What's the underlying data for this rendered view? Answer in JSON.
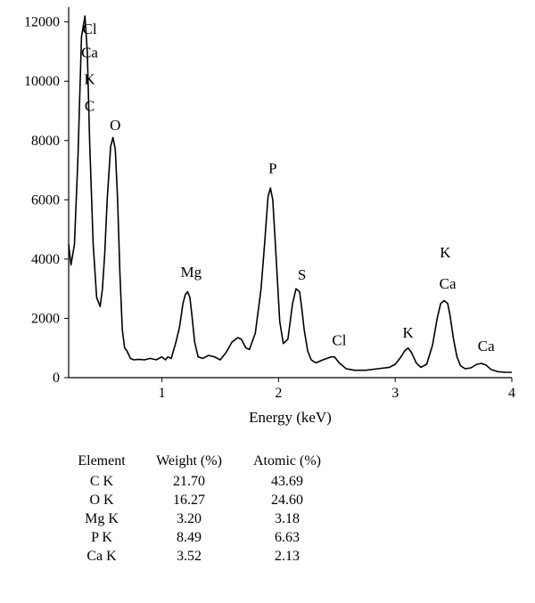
{
  "chart_data": {
    "type": "line",
    "title": "",
    "xlabel": "Energy (keV)",
    "ylabel": "",
    "xlim": [
      0.2,
      4.0
    ],
    "ylim": [
      0,
      12500
    ],
    "x_ticks": [
      1,
      2,
      3,
      4
    ],
    "y_ticks": [
      0,
      2000,
      4000,
      6000,
      8000,
      10000,
      12000
    ],
    "grid": false,
    "series": [
      {
        "x": [
          0.2,
          0.22,
          0.25,
          0.28,
          0.31,
          0.34,
          0.36,
          0.38,
          0.41,
          0.44,
          0.47,
          0.49,
          0.51,
          0.53,
          0.56,
          0.58,
          0.6,
          0.62,
          0.64,
          0.66,
          0.68,
          0.7,
          0.73,
          0.76,
          0.8,
          0.85,
          0.9,
          0.95,
          1.0,
          1.03,
          1.05,
          1.08,
          1.12,
          1.15,
          1.18,
          1.2,
          1.22,
          1.24,
          1.26,
          1.28,
          1.31,
          1.35,
          1.4,
          1.45,
          1.5,
          1.55,
          1.6,
          1.65,
          1.68,
          1.72,
          1.75,
          1.8,
          1.85,
          1.88,
          1.91,
          1.93,
          1.95,
          1.98,
          2.01,
          2.04,
          2.08,
          2.12,
          2.15,
          2.18,
          2.2,
          2.22,
          2.25,
          2.28,
          2.32,
          2.38,
          2.45,
          2.48,
          2.52,
          2.58,
          2.65,
          2.75,
          2.85,
          2.95,
          3.0,
          3.05,
          3.08,
          3.11,
          3.14,
          3.18,
          3.22,
          3.27,
          3.32,
          3.36,
          3.39,
          3.42,
          3.45,
          3.47,
          3.5,
          3.53,
          3.56,
          3.6,
          3.65,
          3.7,
          3.74,
          3.78,
          3.82,
          3.88,
          3.95,
          4.0
        ],
        "y": [
          4500,
          3800,
          4500,
          7500,
          11500,
          12200,
          11000,
          8000,
          4500,
          2700,
          2400,
          3000,
          4200,
          6000,
          7800,
          8100,
          7700,
          6000,
          3500,
          1600,
          1000,
          900,
          650,
          600,
          620,
          600,
          650,
          600,
          700,
          600,
          700,
          650,
          1200,
          1700,
          2500,
          2800,
          2900,
          2700,
          2000,
          1200,
          700,
          650,
          750,
          700,
          600,
          850,
          1200,
          1350,
          1300,
          1000,
          950,
          1500,
          3000,
          4500,
          6100,
          6400,
          6000,
          4000,
          1900,
          1150,
          1300,
          2500,
          3000,
          2900,
          2300,
          1600,
          900,
          600,
          500,
          600,
          700,
          700,
          500,
          300,
          250,
          250,
          300,
          350,
          450,
          700,
          900,
          1000,
          850,
          500,
          350,
          450,
          1100,
          2000,
          2500,
          2600,
          2500,
          2100,
          1300,
          700,
          400,
          300,
          330,
          450,
          480,
          420,
          280,
          200,
          180,
          180
        ]
      }
    ],
    "annotations": [
      {
        "text": "Cl",
        "x": 0.38,
        "y": 11600
      },
      {
        "text": "Ca",
        "x": 0.38,
        "y": 10800
      },
      {
        "text": "K",
        "x": 0.38,
        "y": 9900
      },
      {
        "text": "C",
        "x": 0.38,
        "y": 9000
      },
      {
        "text": "O",
        "x": 0.6,
        "y": 8350
      },
      {
        "text": "Mg",
        "x": 1.25,
        "y": 3400
      },
      {
        "text": "P",
        "x": 1.95,
        "y": 6900
      },
      {
        "text": "S",
        "x": 2.2,
        "y": 3300
      },
      {
        "text": "Cl",
        "x": 2.52,
        "y": 1100
      },
      {
        "text": "K",
        "x": 3.11,
        "y": 1350
      },
      {
        "text": "K",
        "x": 3.43,
        "y": 4050
      },
      {
        "text": "Ca",
        "x": 3.45,
        "y": 3000
      },
      {
        "text": "Ca",
        "x": 3.78,
        "y": 900
      }
    ]
  },
  "table": {
    "headers": [
      "Element",
      "Weight (%)",
      "Atomic (%)"
    ],
    "rows": [
      [
        "C K",
        "21.70",
        "43.69"
      ],
      [
        "O K",
        "16.27",
        "24.60"
      ],
      [
        "Mg K",
        "3.20",
        "3.18"
      ],
      [
        "P K",
        "8.49",
        "6.63"
      ],
      [
        "Ca K",
        "3.52",
        "2.13"
      ]
    ]
  }
}
